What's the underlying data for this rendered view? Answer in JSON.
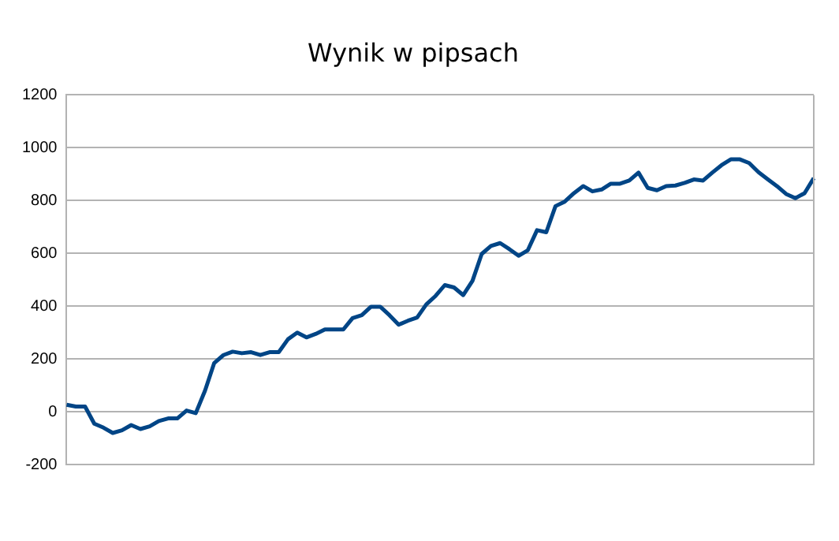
{
  "chart_data": {
    "type": "line",
    "title": "Wynik w pipsach",
    "categories": [
      null,
      null,
      null,
      null,
      null,
      null,
      null,
      null,
      null,
      null,
      null,
      null,
      null,
      null,
      null,
      null,
      null,
      null,
      null,
      null,
      null,
      null,
      null,
      null,
      null,
      null,
      null,
      null,
      null,
      null,
      null,
      null,
      null,
      null,
      null,
      null,
      null,
      null,
      null,
      null,
      null,
      null,
      null,
      null,
      null,
      null,
      null,
      null,
      null,
      null,
      null,
      null,
      null,
      null,
      null,
      null,
      null,
      null,
      null,
      null,
      null,
      null,
      null,
      null,
      null,
      null,
      null,
      null,
      null,
      null,
      null,
      null,
      null,
      null,
      null,
      null,
      null,
      null,
      null,
      null,
      null,
      null
    ],
    "series": [
      {
        "color": "#004586",
        "values": [
          27,
          20,
          20,
          -45,
          -60,
          -80,
          -70,
          -50,
          -65,
          -55,
          -35,
          -25,
          -25,
          5,
          -5,
          80,
          185,
          215,
          228,
          222,
          226,
          215,
          226,
          226,
          275,
          300,
          282,
          295,
          312,
          312,
          312,
          355,
          366,
          398,
          398,
          366,
          330,
          345,
          357,
          407,
          439,
          480,
          471,
          442,
          496,
          598,
          628,
          639,
          616,
          591,
          612,
          688,
          680,
          779,
          796,
          828,
          855,
          835,
          842,
          864,
          864,
          876,
          906,
          848,
          839,
          855,
          857,
          867,
          880,
          876,
          906,
          934,
          956,
          956,
          942,
          908,
          881,
          855,
          825,
          809,
          828,
          885
        ]
      }
    ],
    "ylim": [
      -200,
      1200
    ],
    "yticks": [
      -200,
      0,
      200,
      400,
      600,
      800,
      1000,
      1200
    ],
    "grid": "y",
    "legend": false,
    "marker": "none",
    "line_style": "solid"
  }
}
